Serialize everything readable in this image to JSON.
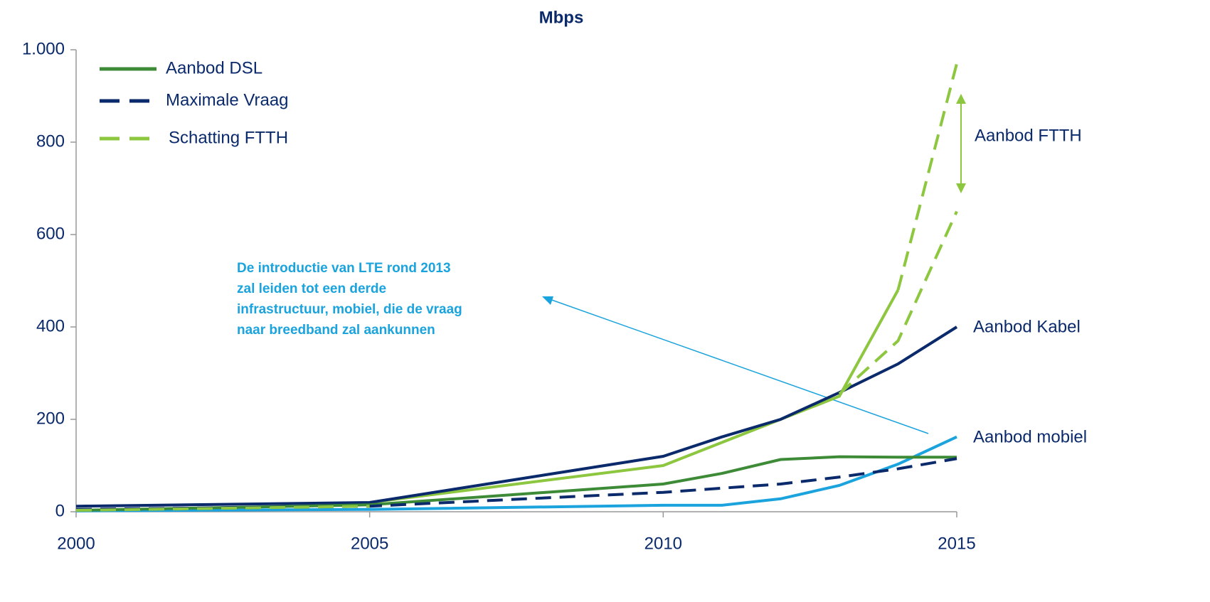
{
  "chart_data": {
    "type": "line",
    "title": "Mbps",
    "xlim": [
      2000,
      2015
    ],
    "xticks": [
      2000,
      2005,
      2010,
      2015
    ],
    "ylim": [
      0,
      1000
    ],
    "yticks": [
      0,
      200,
      400,
      600,
      800,
      {
        "value": 1000,
        "label": "1.000"
      }
    ],
    "series": [
      {
        "name": "Aanbod DSL",
        "color": "#3d8b37",
        "dash": false,
        "x": [
          2000,
          2005,
          2010,
          2011,
          2012,
          2013,
          2014,
          2015
        ],
        "values": [
          3,
          15,
          60,
          83,
          113,
          119,
          118,
          118
        ]
      },
      {
        "name": "Maximale Vraag",
        "color": "#0a2a6b",
        "dash": true,
        "x": [
          2000,
          2005,
          2010,
          2012,
          2013,
          2014,
          2015
        ],
        "values": [
          5,
          12,
          42,
          60,
          75,
          93,
          115
        ]
      },
      {
        "name": "Schatting FTTH",
        "color": "#8dc63f",
        "dash": true,
        "x": [
          2000,
          2005,
          2013,
          2014,
          2015
        ],
        "values": [
          3,
          12,
          null,
          480,
          970
        ]
      },
      {
        "color": "#8dc63f",
        "dash": true,
        "x": [
          2013,
          2014,
          2015
        ],
        "values": [
          255,
          370,
          650
        ]
      },
      {
        "color": "#8dc63f",
        "dash": false,
        "x": [
          2005,
          2010,
          2011,
          2012,
          2013,
          2014
        ],
        "values": [
          20,
          100,
          150,
          200,
          250,
          480
        ]
      },
      {
        "color": "#0a2a6b",
        "dash": false,
        "x": [
          2000,
          2005,
          2010,
          2011,
          2012,
          2013,
          2014,
          2015
        ],
        "values": [
          12,
          20,
          120,
          162,
          200,
          258,
          320,
          400
        ]
      },
      {
        "color": "#1aa3dd",
        "dash": false,
        "x": [
          2000,
          2005,
          2010,
          2011,
          2012,
          2013,
          2014,
          2015
        ],
        "values": [
          2,
          5,
          14,
          14,
          28,
          57,
          103,
          162
        ]
      }
    ],
    "annotations": [
      "Aanbod FTTH",
      "Aanbod Kabel",
      "Aanbod mobiel"
    ],
    "callout": [
      "De introductie van LTE rond 2013",
      "zal leiden tot een derde",
      "infrastructuur, mobiel, die de vraag",
      "naar breedband zal aankunnen"
    ]
  }
}
